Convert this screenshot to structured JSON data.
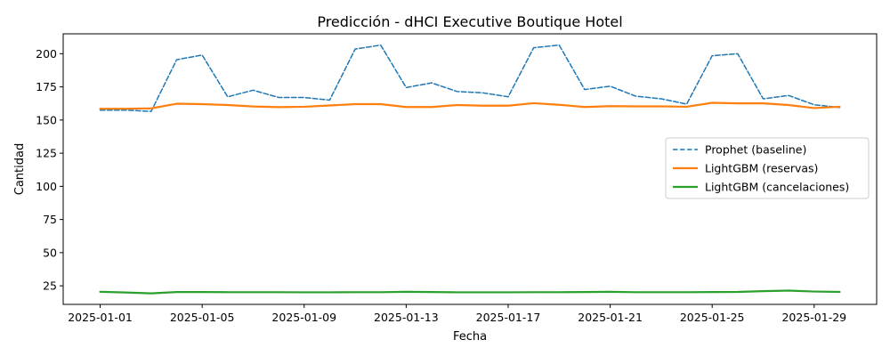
{
  "chart_data": {
    "type": "line",
    "title": "Predicción - dHCI Executive Boutique Hotel",
    "xlabel": "Fecha",
    "ylabel": "Cantidad",
    "x": [
      "2025-01-01",
      "2025-01-02",
      "2025-01-03",
      "2025-01-04",
      "2025-01-05",
      "2025-01-06",
      "2025-01-07",
      "2025-01-08",
      "2025-01-09",
      "2025-01-10",
      "2025-01-11",
      "2025-01-12",
      "2025-01-13",
      "2025-01-14",
      "2025-01-15",
      "2025-01-16",
      "2025-01-17",
      "2025-01-18",
      "2025-01-19",
      "2025-01-20",
      "2025-01-21",
      "2025-01-22",
      "2025-01-23",
      "2025-01-24",
      "2025-01-25",
      "2025-01-26",
      "2025-01-27",
      "2025-01-28",
      "2025-01-29",
      "2025-01-30"
    ],
    "xticks": [
      "2025-01-01",
      "2025-01-05",
      "2025-01-09",
      "2025-01-13",
      "2025-01-17",
      "2025-01-21",
      "2025-01-25",
      "2025-01-29"
    ],
    "yticks": [
      25,
      50,
      75,
      100,
      125,
      150,
      175,
      200
    ],
    "ylim": [
      11,
      215
    ],
    "grid": false,
    "legend_position": "center-right",
    "series": [
      {
        "name": "Prophet (baseline)",
        "color": "#1f77b4",
        "style": "dashed",
        "values": [
          157.5,
          157.5,
          156.5,
          195.5,
          199.0,
          167.5,
          172.5,
          167.0,
          167.0,
          165.0,
          203.5,
          206.5,
          174.5,
          178.0,
          171.5,
          170.5,
          167.5,
          204.5,
          206.5,
          173.0,
          175.5,
          168.0,
          166.0,
          162.0,
          198.5,
          200.0,
          166.0,
          168.5,
          161.5,
          159.5
        ]
      },
      {
        "name": "LightGBM (reservas)",
        "color": "#ff7f0e",
        "style": "solid",
        "values": [
          158.5,
          158.5,
          158.8,
          162.3,
          162.0,
          161.3,
          160.2,
          159.7,
          160.0,
          161.0,
          162.0,
          162.0,
          159.8,
          159.8,
          161.3,
          160.8,
          160.8,
          162.7,
          161.5,
          159.8,
          160.5,
          160.3,
          160.3,
          160.0,
          163.0,
          162.6,
          162.6,
          161.3,
          159.0,
          160.0
        ]
      },
      {
        "name": "LightGBM (cancelaciones)",
        "color": "#2ca02c",
        "style": "solid",
        "values": [
          20.5,
          20.0,
          19.3,
          20.3,
          20.3,
          20.2,
          20.2,
          20.2,
          20.1,
          20.1,
          20.2,
          20.2,
          20.5,
          20.3,
          20.1,
          20.1,
          20.1,
          20.2,
          20.2,
          20.3,
          20.5,
          20.2,
          20.2,
          20.2,
          20.3,
          20.4,
          21.0,
          21.4,
          20.7,
          20.4
        ]
      }
    ]
  }
}
